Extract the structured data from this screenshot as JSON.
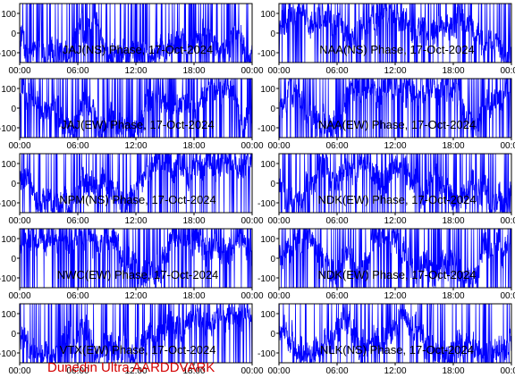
{
  "footer_text": "Dunedin Ultra AARDDVARK",
  "colors": {
    "trace": "#0000ff",
    "axes": "#000000",
    "footer": "#d40000",
    "background": "#ffffff"
  },
  "chart_data": [
    {
      "type": "line",
      "title": "JAJ(NS) Phase, 17-Oct-2024",
      "x_ticks": [
        "00:00",
        "06:00",
        "12:00",
        "18:00",
        "00:00"
      ],
      "y_ticks": [
        100,
        0,
        -100
      ],
      "ylim": [
        -150,
        150
      ],
      "xlim_hours": [
        0,
        24
      ],
      "series": [
        {
          "color": "#0000ff",
          "density": 0.85
        }
      ],
      "grid": false
    },
    {
      "type": "line",
      "title": "NAA(NS) Phase, 17-Oct-2024",
      "x_ticks": [
        "00:00",
        "06:00",
        "12:00",
        "18:00",
        "00:00"
      ],
      "y_ticks": [
        100,
        0,
        -100
      ],
      "ylim": [
        -150,
        150
      ],
      "xlim_hours": [
        0,
        24
      ],
      "series": [
        {
          "color": "#0000ff",
          "density": 0.8
        }
      ],
      "grid": false
    },
    {
      "type": "line",
      "title": "JAJ(EW) Phase, 17-Oct-2024",
      "x_ticks": [
        "00:00",
        "06:00",
        "12:00",
        "18:00",
        "00:00"
      ],
      "y_ticks": [
        100,
        0,
        -100
      ],
      "ylim": [
        -150,
        150
      ],
      "xlim_hours": [
        0,
        24
      ],
      "series": [
        {
          "color": "#0000ff",
          "density": 0.95
        }
      ],
      "grid": false
    },
    {
      "type": "line",
      "title": "NAA(EW) Phase, 17-Oct-2024",
      "x_ticks": [
        "00:00",
        "06:00",
        "12:00",
        "18:00",
        "00:00"
      ],
      "y_ticks": [
        100,
        0,
        -100
      ],
      "ylim": [
        -150,
        150
      ],
      "xlim_hours": [
        0,
        24
      ],
      "series": [
        {
          "color": "#0000ff",
          "density": 0.9
        }
      ],
      "grid": false
    },
    {
      "type": "line",
      "title": "NPM(NS) Phase, 17-Oct-2024",
      "x_ticks": [
        "00:00",
        "06:00",
        "12:00",
        "18:00",
        "00:00"
      ],
      "y_ticks": [
        100,
        0,
        -100
      ],
      "ylim": [
        -150,
        150
      ],
      "xlim_hours": [
        0,
        24
      ],
      "series": [
        {
          "color": "#0000ff",
          "density": 0.7
        }
      ],
      "grid": false
    },
    {
      "type": "line",
      "title": "NDK(EW) Phase, 17-Oct-2024",
      "x_ticks": [
        "00:00",
        "06:00",
        "12:00",
        "18:00",
        "00:00"
      ],
      "y_ticks": [
        100,
        0,
        -100
      ],
      "ylim": [
        -150,
        150
      ],
      "xlim_hours": [
        0,
        24
      ],
      "series": [
        {
          "color": "#0000ff",
          "density": 0.75
        }
      ],
      "grid": false
    },
    {
      "type": "line",
      "title": "NWC(EW) Phase, 17-Oct-2024",
      "x_ticks": [
        "00:00",
        "06:00",
        "12:00",
        "18:00",
        "00:00"
      ],
      "y_ticks": [
        100,
        0,
        -100
      ],
      "ylim": [
        -150,
        150
      ],
      "xlim_hours": [
        0,
        24
      ],
      "series": [
        {
          "color": "#0000ff",
          "density": 0.75
        }
      ],
      "grid": false
    },
    {
      "type": "line",
      "title": "NDK(EW) Phase, 17-Oct-2024",
      "x_ticks": [
        "00:00",
        "06:00",
        "12:00",
        "18:00",
        "00:00"
      ],
      "y_ticks": [
        100,
        0,
        -100
      ],
      "ylim": [
        -150,
        150
      ],
      "xlim_hours": [
        0,
        24
      ],
      "series": [
        {
          "color": "#0000ff",
          "density": 0.8
        }
      ],
      "grid": false
    },
    {
      "type": "line",
      "title": "VTX(EW) Phase, 17-Oct-2024",
      "x_ticks": [
        "00:00",
        "06:00",
        "12:00",
        "18:00",
        "00:00"
      ],
      "y_ticks": [
        100,
        0,
        -100
      ],
      "ylim": [
        -150,
        150
      ],
      "xlim_hours": [
        0,
        24
      ],
      "series": [
        {
          "color": "#0000ff",
          "density": 0.75
        }
      ],
      "grid": false
    },
    {
      "type": "line",
      "title": "NLK(NS) Phase, 17-Oct-2024",
      "x_ticks": [
        "00:00",
        "06:00",
        "12:00",
        "18:00",
        "00:00"
      ],
      "y_ticks": [
        100,
        0,
        -100
      ],
      "ylim": [
        -150,
        150
      ],
      "xlim_hours": [
        0,
        24
      ],
      "series": [
        {
          "color": "#0000ff",
          "density": 0.65
        }
      ],
      "grid": false
    }
  ]
}
